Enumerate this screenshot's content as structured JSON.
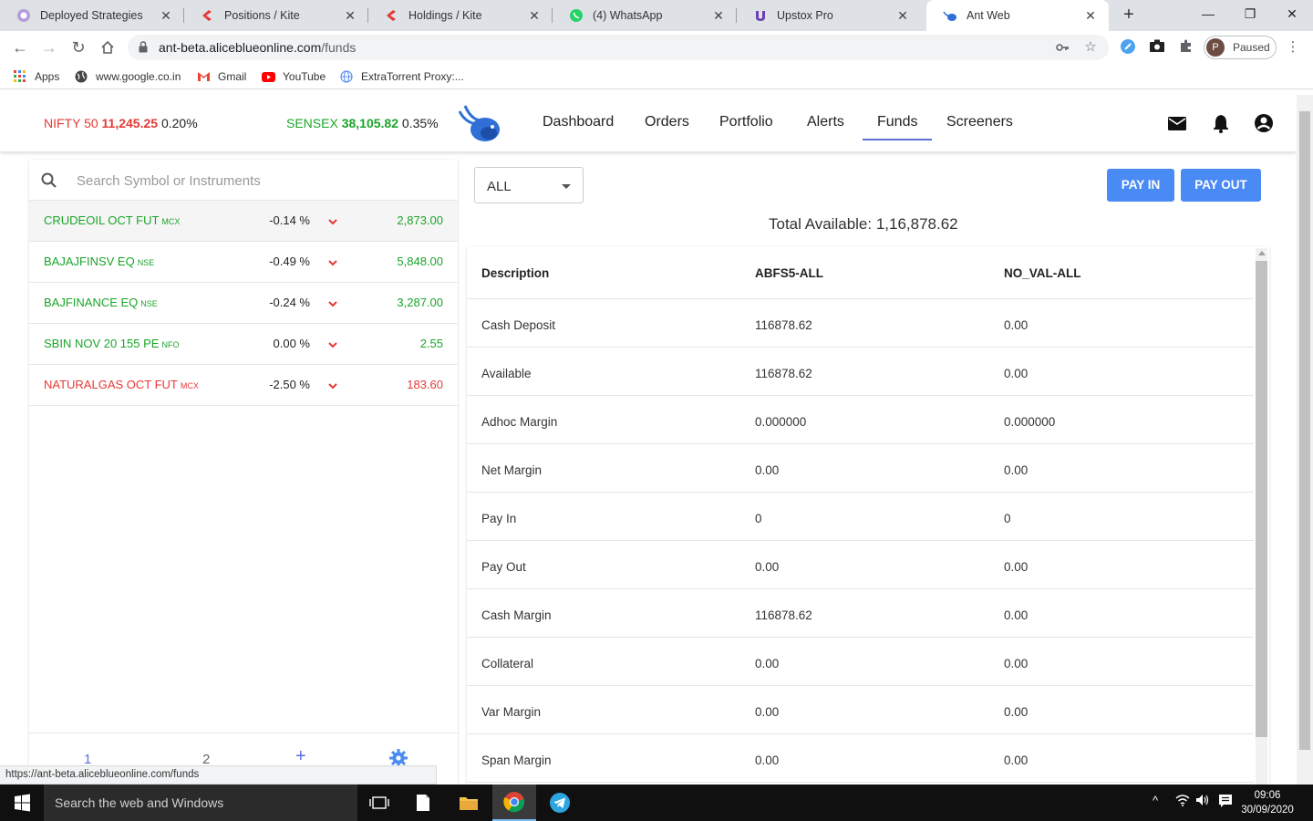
{
  "browser": {
    "tabs": [
      {
        "title": "Deployed Strategies",
        "icon": "strategy-icon"
      },
      {
        "title": "Positions / Kite",
        "icon": "kite-icon"
      },
      {
        "title": "Holdings / Kite",
        "icon": "kite-icon"
      },
      {
        "title": "(4) WhatsApp",
        "icon": "whatsapp-icon"
      },
      {
        "title": "Upstox Pro",
        "icon": "upstox-icon"
      },
      {
        "title": "Ant Web",
        "icon": "ant-icon"
      }
    ],
    "active_tab": 5,
    "url_host": "ant-beta.aliceblueonline.com",
    "url_path": "/funds",
    "profile_initial": "P",
    "profile_status": "Paused",
    "bookmarks": [
      {
        "label": "Apps",
        "icon": "apps-grid-icon"
      },
      {
        "label": "www.google.co.in",
        "icon": "globe-icon"
      },
      {
        "label": "Gmail",
        "icon": "gmail-icon"
      },
      {
        "label": "YouTube",
        "icon": "youtube-icon"
      },
      {
        "label": "ExtraTorrent Proxy:...",
        "icon": "globe-icon"
      }
    ],
    "status_url": "https://ant-beta.aliceblueonline.com/funds"
  },
  "header": {
    "indices": [
      {
        "name": "NIFTY 50",
        "value": "11,245.25",
        "change": "0.20%"
      },
      {
        "name": "SENSEX",
        "value": "38,105.82",
        "change": "0.35%"
      }
    ],
    "nav": [
      "Dashboard",
      "Orders",
      "Portfolio",
      "Alerts",
      "Funds",
      "Screeners"
    ],
    "active_nav": "Funds"
  },
  "watchlist": {
    "search_placeholder": "Search Symbol or Instruments",
    "items": [
      {
        "symbol": "CRUDEOIL OCT FUT",
        "exchange": "MCX",
        "change": "-0.14 %",
        "ltp": "2,873.00",
        "color": "green"
      },
      {
        "symbol": "BAJAJFINSV EQ",
        "exchange": "NSE",
        "change": "-0.49 %",
        "ltp": "5,848.00",
        "color": "green"
      },
      {
        "symbol": "BAJFINANCE EQ",
        "exchange": "NSE",
        "change": "-0.24 %",
        "ltp": "3,287.00",
        "color": "green"
      },
      {
        "symbol": "SBIN NOV 20 155 PE",
        "exchange": "NFO",
        "change": "0.00 %",
        "ltp": "2.55",
        "color": "green"
      },
      {
        "symbol": "NATURALGAS OCT FUT",
        "exchange": "MCX",
        "change": "-2.50 %",
        "ltp": "183.60",
        "color": "red"
      }
    ],
    "pages": [
      "1",
      "2"
    ]
  },
  "funds": {
    "filter_value": "ALL",
    "pay_in_label": "PAY IN",
    "pay_out_label": "PAY OUT",
    "total_available": "Total Available: 1,16,878.62",
    "columns": [
      "Description",
      "ABFS5-ALL",
      "NO_VAL-ALL"
    ],
    "rows": [
      [
        "Cash Deposit",
        "116878.62",
        "0.00"
      ],
      [
        "Available",
        "116878.62",
        "0.00"
      ],
      [
        "Adhoc Margin",
        "0.000000",
        "0.000000"
      ],
      [
        "Net Margin",
        "0.00",
        "0.00"
      ],
      [
        "Pay In",
        "0",
        "0"
      ],
      [
        "Pay Out",
        "0.00",
        "0.00"
      ],
      [
        "Cash Margin",
        "116878.62",
        "0.00"
      ],
      [
        "Collateral",
        "0.00",
        "0.00"
      ],
      [
        "Var Margin",
        "0.00",
        "0.00"
      ],
      [
        "Span Margin",
        "0.00",
        "0.00"
      ]
    ]
  },
  "taskbar": {
    "search_label": "Search the web and Windows",
    "time": "09:06",
    "date": "30/09/2020"
  },
  "colors": {
    "accent_blue": "#4a8af4",
    "nav_underline": "#5b6fd6",
    "positive_green": "#1aa529",
    "negative_red": "#e53935"
  }
}
